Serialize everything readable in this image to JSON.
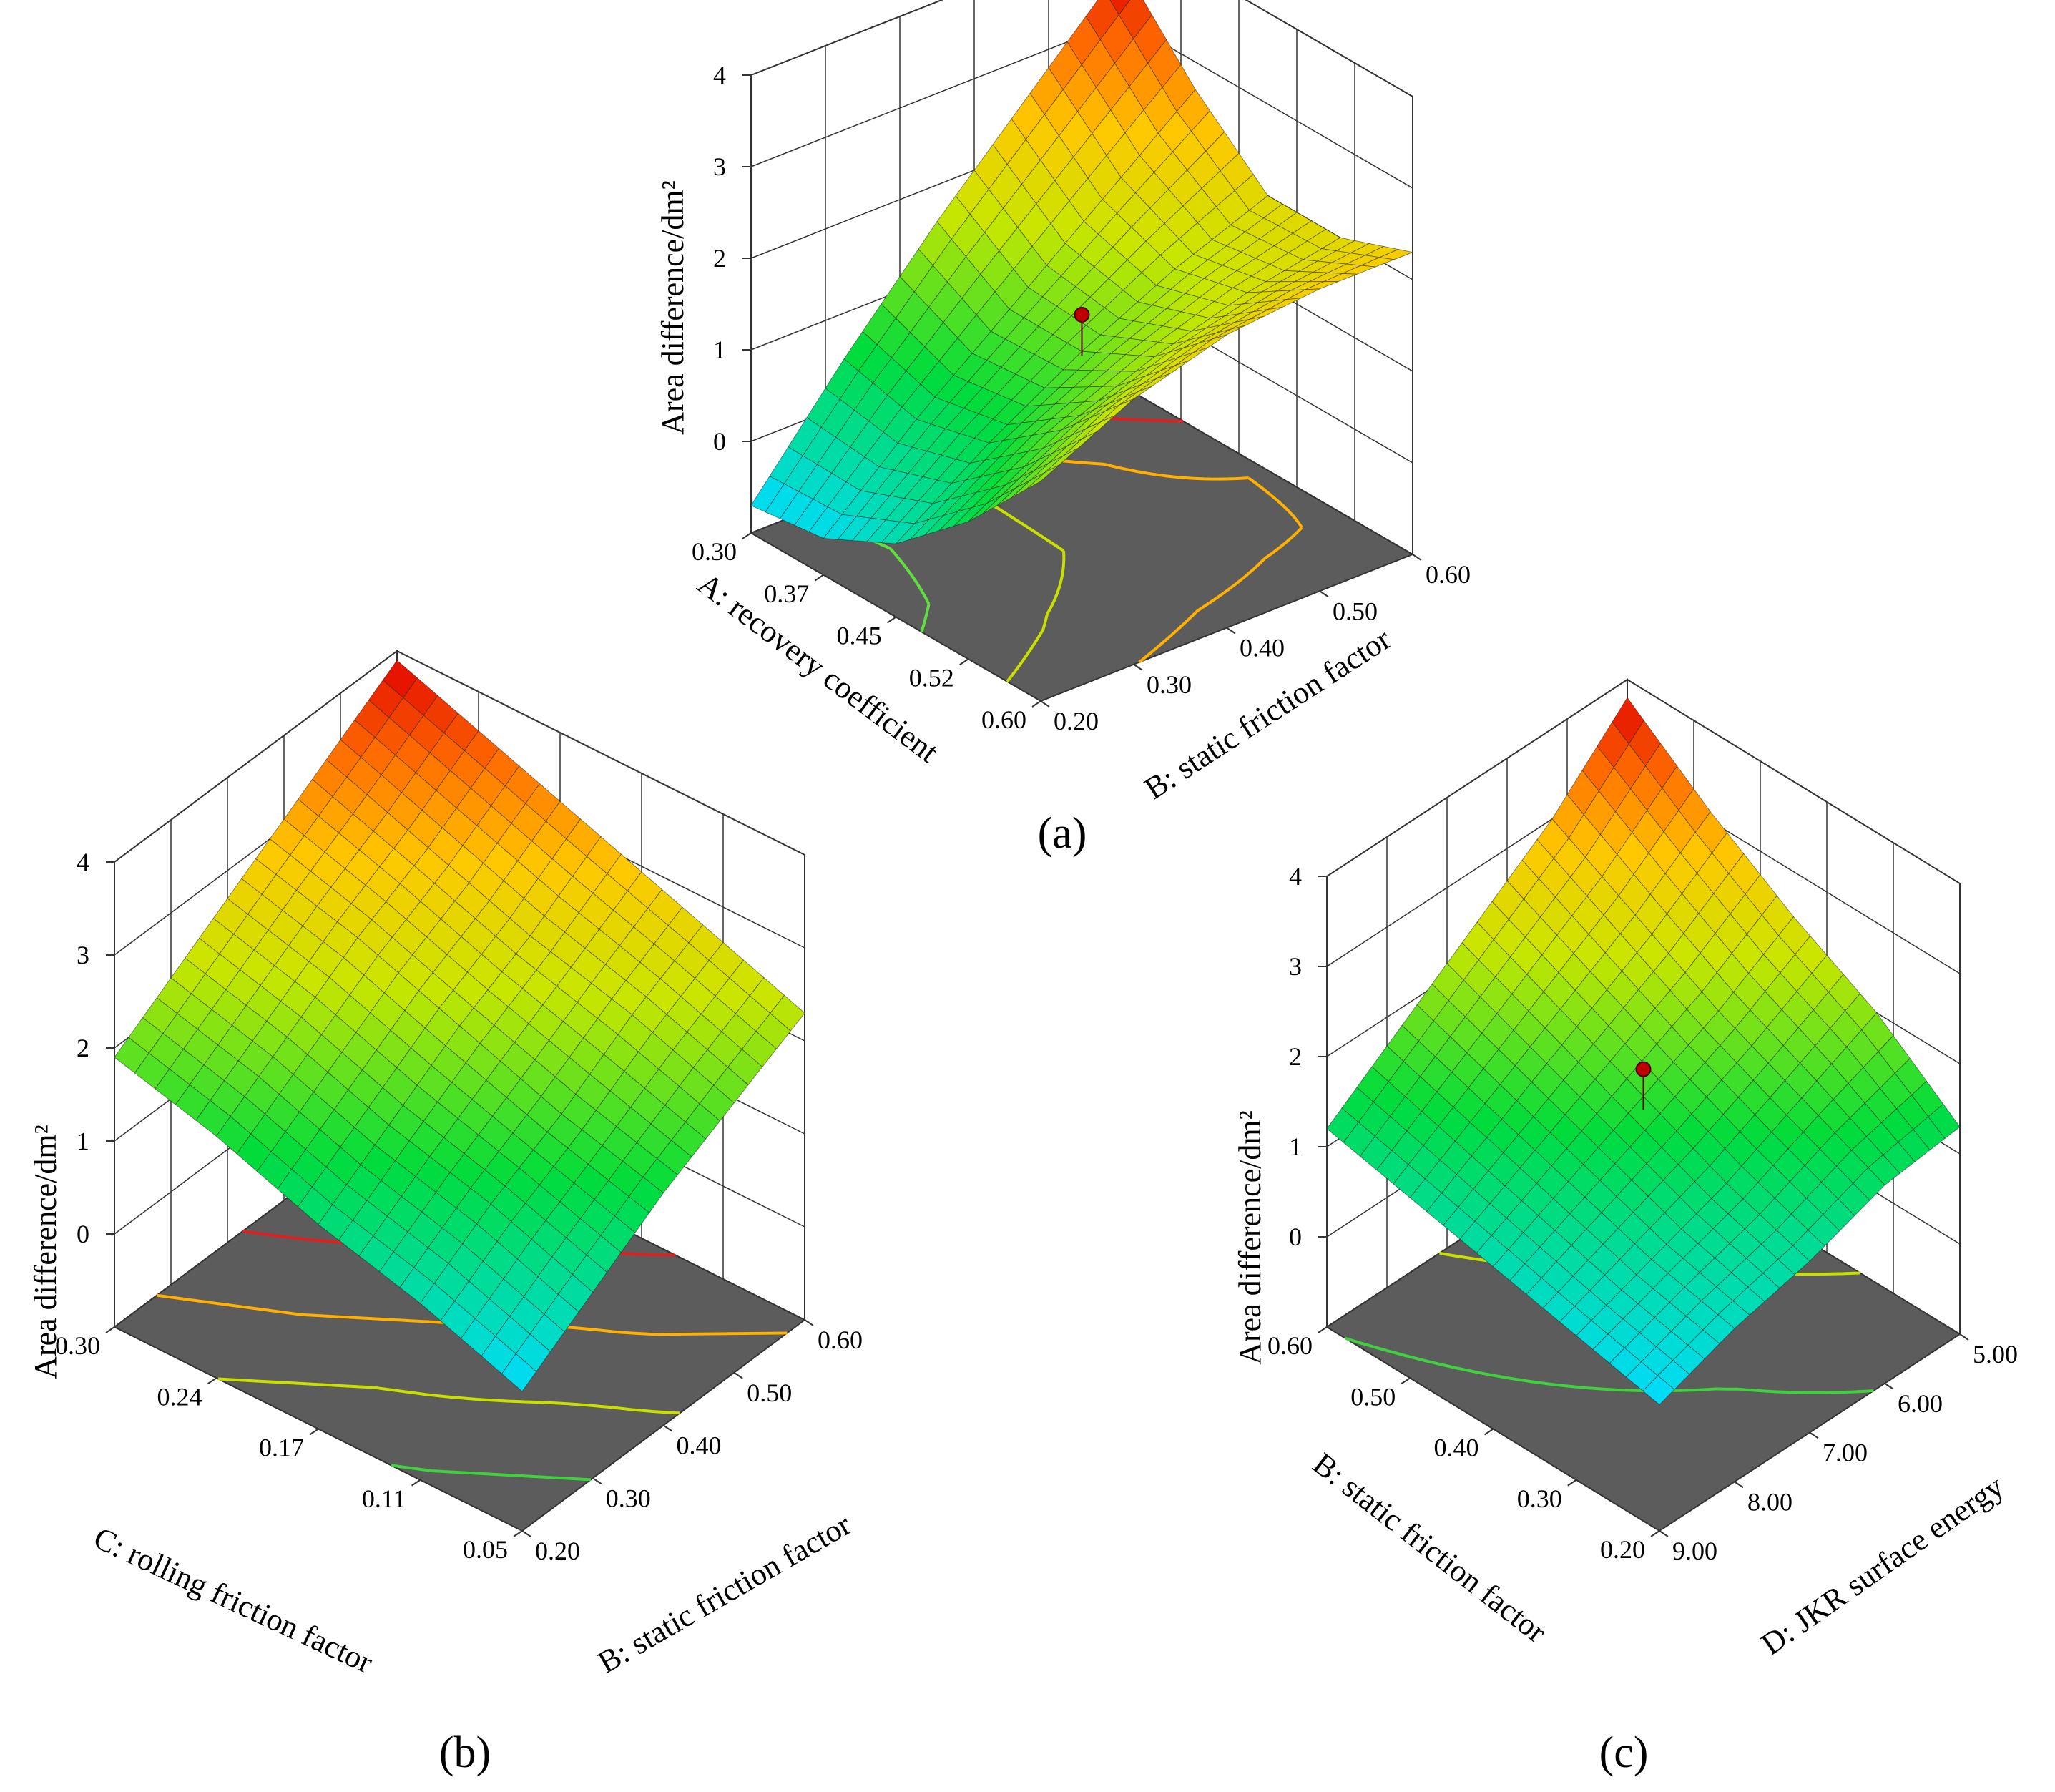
{
  "figure": {
    "panels": [
      {
        "caption": "(a)",
        "marker": true,
        "z": {
          "label": "Area difference/dm²",
          "ticks": [
            "0",
            "1",
            "2",
            "3",
            "4"
          ],
          "range": [
            -1,
            4
          ]
        },
        "x": {
          "label": "A: recovery coefficient",
          "ticks": [
            "0.30",
            "0.37",
            "0.45",
            "0.52",
            "0.60"
          ]
        },
        "y": {
          "label": "B: static friction factor",
          "ticks": [
            "0.20",
            "0.30",
            "0.40",
            "0.50",
            "0.60"
          ]
        }
      },
      {
        "caption": "(b)",
        "marker": false,
        "z": {
          "label": "Area difference/dm²",
          "ticks": [
            "0",
            "1",
            "2",
            "3",
            "4"
          ],
          "range": [
            -1,
            4
          ]
        },
        "x": {
          "label": "C: rolling friction factor",
          "ticks": [
            "0.30",
            "0.24",
            "0.17",
            "0.11",
            "0.05"
          ]
        },
        "y": {
          "label": "B: static friction factor",
          "ticks": [
            "0.20",
            "0.30",
            "0.40",
            "0.50",
            "0.60"
          ]
        }
      },
      {
        "caption": "(c)",
        "marker": true,
        "z": {
          "label": "Area difference/dm²",
          "ticks": [
            "0",
            "1",
            "2",
            "3",
            "4"
          ],
          "range": [
            -1,
            4
          ]
        },
        "x": {
          "label": "B: static friction factor",
          "ticks": [
            "0.60",
            "0.50",
            "0.40",
            "0.30",
            "0.20"
          ]
        },
        "y": {
          "label": "D: JKR surface energy",
          "ticks": [
            "9.00",
            "8.00",
            "7.00",
            "6.00",
            "5.00"
          ]
        }
      }
    ]
  },
  "chart_data": [
    {
      "type": "surface",
      "panel": "(a)",
      "xlabel": "A: recovery coefficient",
      "ylabel": "B: static friction factor",
      "zlabel": "Area difference/dm²",
      "x": [
        0.3,
        0.375,
        0.45,
        0.525,
        0.6
      ],
      "y": [
        0.2,
        0.3,
        0.4,
        0.5,
        0.6
      ],
      "z_grid_rows_by_x_cols_by_y": [
        [
          -0.7,
          0.5,
          1.6,
          2.6,
          3.6
        ],
        [
          -0.6,
          0.3,
          1.1,
          1.9,
          2.7
        ],
        [
          -0.2,
          0.5,
          1.1,
          1.6,
          2.0
        ],
        [
          0.5,
          1.1,
          1.5,
          1.8,
          2.0
        ],
        [
          1.4,
          1.9,
          2.2,
          2.3,
          2.3
        ]
      ],
      "zlim": [
        -1,
        4
      ],
      "design_point": {
        "x": 0.45,
        "y": 0.4,
        "z": 1.5
      }
    },
    {
      "type": "surface",
      "panel": "(b)",
      "xlabel": "C: rolling friction factor",
      "ylabel": "B: static friction factor",
      "zlabel": "Area difference/dm²",
      "x": [
        0.3,
        0.2375,
        0.175,
        0.1125,
        0.05
      ],
      "y": [
        0.2,
        0.3,
        0.4,
        0.5,
        0.6
      ],
      "z_grid_rows_by_x_cols_by_y": [
        [
          1.9,
          2.4,
          2.9,
          3.4,
          3.9
        ],
        [
          1.6,
          2.1,
          2.6,
          3.0,
          3.5
        ],
        [
          1.2,
          1.7,
          2.2,
          2.6,
          3.1
        ],
        [
          0.9,
          1.4,
          1.8,
          2.3,
          2.7
        ],
        [
          0.5,
          1.0,
          1.5,
          1.9,
          2.3
        ]
      ],
      "zlim": [
        -1,
        4
      ]
    },
    {
      "type": "surface",
      "panel": "(c)",
      "xlabel": "B: static friction factor",
      "ylabel": "D: JKR surface energy",
      "zlabel": "Area difference/dm²",
      "x": [
        0.6,
        0.5,
        0.4,
        0.3,
        0.2
      ],
      "y": [
        9.0,
        8.0,
        7.0,
        6.0,
        5.0
      ],
      "z_grid_rows_by_x_cols_by_y": [
        [
          1.2,
          1.8,
          2.4,
          3.0,
          3.8
        ],
        [
          1.0,
          1.5,
          2.0,
          2.5,
          3.1
        ],
        [
          0.8,
          1.2,
          1.6,
          2.0,
          2.5
        ],
        [
          0.6,
          0.9,
          1.2,
          1.6,
          2.0
        ],
        [
          0.4,
          0.7,
          0.9,
          1.2,
          1.3
        ]
      ],
      "zlim": [
        -1,
        4
      ],
      "design_point": {
        "x": 0.4,
        "y": 7.0,
        "z": 1.9
      }
    }
  ]
}
